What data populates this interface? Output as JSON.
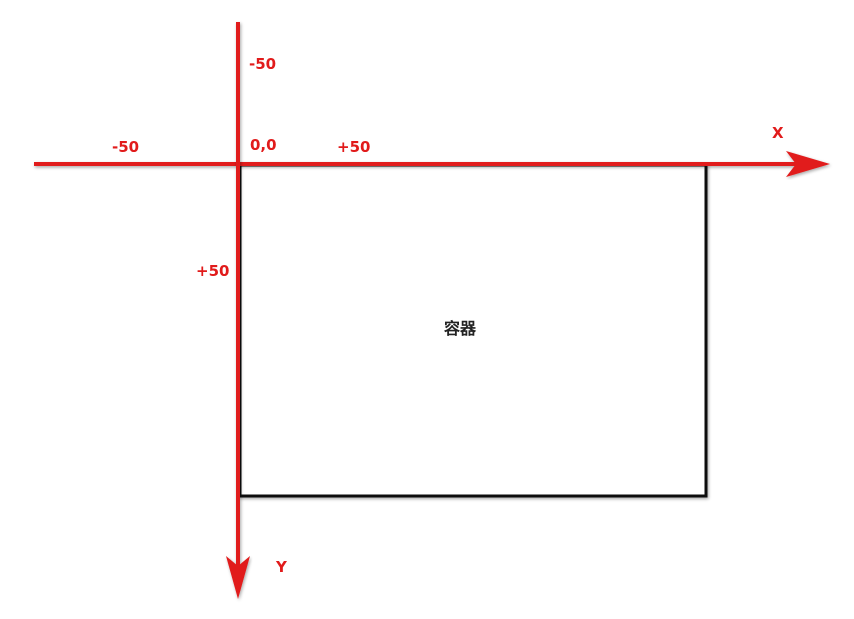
{
  "axes": {
    "x_label": "X",
    "y_label": "Y",
    "color": "#e11b1b"
  },
  "origin_label": "0,0",
  "tick_labels": {
    "x_negative": "-50",
    "x_positive": "+50",
    "y_negative": "-50",
    "y_positive": "+50"
  },
  "container": {
    "label": "容器",
    "border_color": "#111111"
  }
}
